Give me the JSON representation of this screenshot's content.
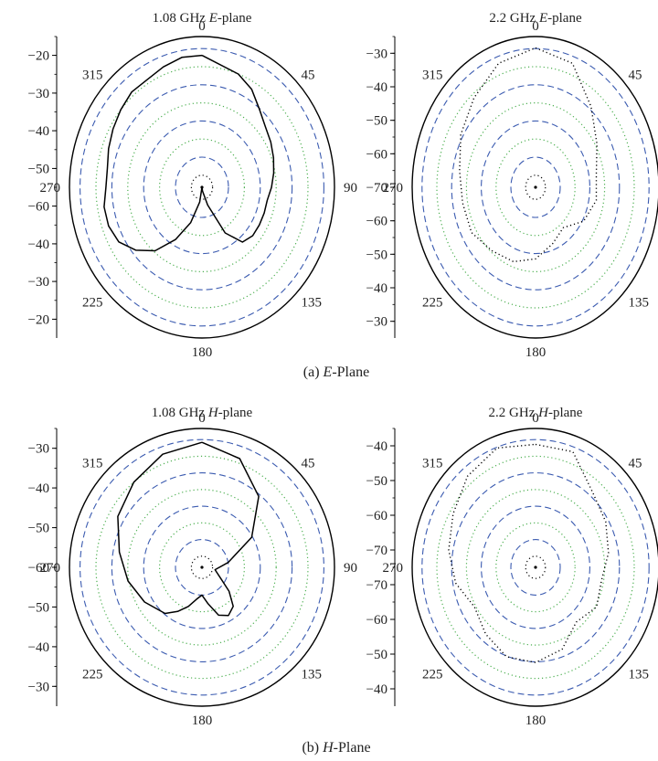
{
  "chart_data": [
    {
      "type": "polar",
      "panel": "a",
      "title_prefix": "1.08 GHz ",
      "title_italic": "E",
      "title_suffix": "-plane",
      "angle_labels": [
        "0",
        "45",
        "90",
        "135",
        "180",
        "225",
        "270",
        "315"
      ],
      "radial_ticks": [
        "-20",
        "-30",
        "-40",
        "-50",
        "-60",
        "-40",
        "-30",
        "-20"
      ],
      "rmin": -60,
      "rmax": -20,
      "line_style": "solid",
      "series": [
        {
          "theta": [
            0,
            20,
            30,
            40,
            50,
            60,
            70,
            80,
            90,
            100,
            110,
            120,
            130,
            140,
            150,
            160,
            170,
            180,
            190,
            200,
            210,
            220,
            230,
            240,
            250,
            260,
            270,
            280,
            290,
            300,
            310,
            320,
            330,
            340,
            350,
            360
          ],
          "r": [
            -25,
            -28,
            -30,
            -33,
            -35,
            -36,
            -37,
            -38,
            -39,
            -40,
            -40,
            -40,
            -40,
            -41,
            -46,
            -55,
            -59,
            -60,
            -56,
            -50,
            -44,
            -38,
            -34,
            -31,
            -30,
            -30,
            -31,
            -31,
            -30,
            -29,
            -28,
            -27,
            -27,
            -26,
            -25,
            -25
          ]
        }
      ]
    },
    {
      "type": "polar",
      "panel": "a",
      "title_prefix": "2.2 GHz ",
      "title_italic": "E",
      "title_suffix": "-plane",
      "angle_labels": [
        "0",
        "45",
        "90",
        "135",
        "180",
        "225",
        "270",
        "315"
      ],
      "radial_ticks": [
        "-30",
        "-40",
        "-50",
        "-60",
        "-70",
        "-60",
        "-50",
        "-40",
        "-30"
      ],
      "rmin": -70,
      "rmax": -30,
      "line_style": "dotted",
      "series": [
        {
          "theta": [
            0,
            20,
            40,
            60,
            80,
            100,
            120,
            140,
            160,
            180,
            200,
            220,
            240,
            260,
            280,
            300,
            320,
            340,
            360
          ],
          "r": [
            -33,
            -35,
            -42,
            -47,
            -50,
            -50,
            -52,
            -56,
            -54,
            -51,
            -49,
            -48,
            -46,
            -46,
            -45,
            -42,
            -39,
            -35,
            -33
          ]
        }
      ]
    },
    {
      "type": "polar",
      "panel": "b",
      "title_prefix": "1.08 GHz ",
      "title_italic": "H",
      "title_suffix": "-plane",
      "angle_labels": [
        "0",
        "45",
        "90",
        "135",
        "180",
        "225",
        "270",
        "315"
      ],
      "radial_ticks": [
        "-30",
        "-40",
        "-50",
        "-60",
        "-50",
        "-40",
        "-30"
      ],
      "rmin": -60,
      "rmax": -30,
      "line_style": "solid",
      "series": [
        {
          "theta": [
            0,
            20,
            40,
            60,
            80,
            100,
            120,
            130,
            140,
            150,
            160,
            170,
            180,
            190,
            200,
            210,
            220,
            240,
            260,
            280,
            300,
            320,
            340,
            360
          ],
          "r": [
            -33,
            -35,
            -40,
            -47,
            -54,
            -57,
            -55,
            -52,
            -49,
            -48,
            -49,
            -52,
            -54,
            -53,
            -51,
            -49,
            -47,
            -45,
            -43,
            -41,
            -38,
            -36,
            -34,
            -33
          ]
        }
      ]
    },
    {
      "type": "polar",
      "panel": "b",
      "title_prefix": "2.2 GHz ",
      "title_italic": "H",
      "title_suffix": "-plane",
      "angle_labels": [
        "0",
        "45",
        "90",
        "135",
        "180",
        "225",
        "270",
        "315"
      ],
      "radial_ticks": [
        "-40",
        "-50",
        "-60",
        "-70",
        "-70",
        "-60",
        "-50",
        "-40"
      ],
      "rmin": -75,
      "rmax": -40,
      "line_style": "dotted",
      "series": [
        {
          "theta": [
            0,
            20,
            40,
            60,
            80,
            100,
            120,
            140,
            160,
            180,
            200,
            220,
            240,
            260,
            280,
            300,
            320,
            340,
            360
          ],
          "r": [
            -44,
            -44,
            -50,
            -52,
            -54,
            -56,
            -55,
            -57,
            -53,
            -51,
            -51,
            -53,
            -55,
            -52,
            -50,
            -48,
            -45,
            -43,
            -44
          ]
        }
      ]
    }
  ],
  "captions": {
    "a_prefix": "(a)  ",
    "a_italic": "E",
    "a_suffix": "-Plane",
    "b_prefix": "(b)  ",
    "b_italic": "H",
    "b_suffix": "-Plane"
  },
  "colors": {
    "frame": "#000000",
    "grid_dashed": "#3b5bb0",
    "grid_dotted": "#4caf50",
    "trace": "#000000"
  }
}
